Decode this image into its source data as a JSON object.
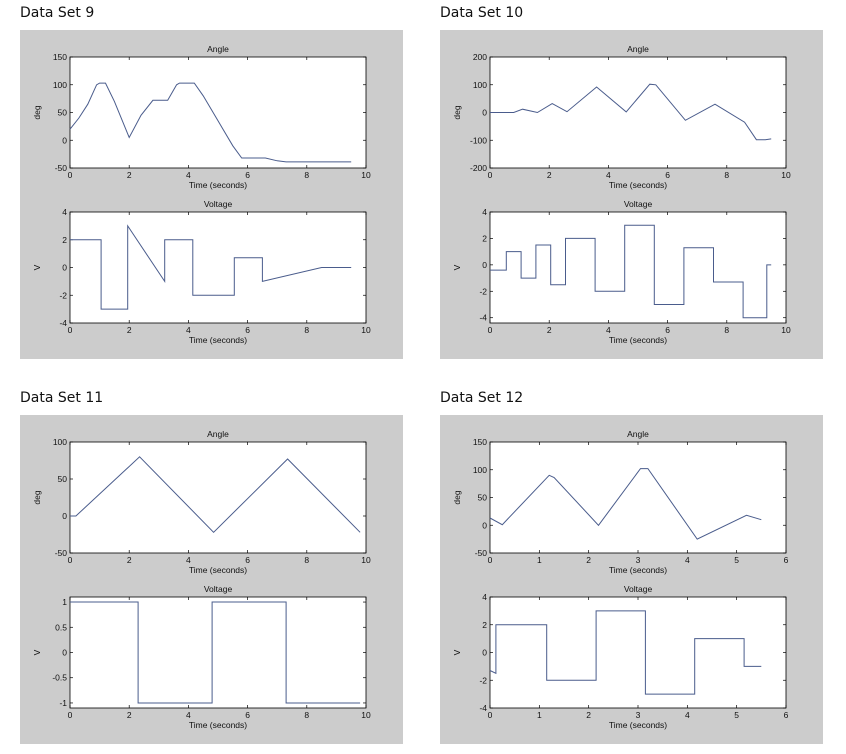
{
  "chart_data": [
    {
      "set_title": "Data Set 9",
      "plots": [
        {
          "type": "line",
          "title": "Angle",
          "xlabel": "Time (seconds)",
          "ylabel": "deg",
          "xlim": [
            0,
            10
          ],
          "ylim": [
            -50,
            150
          ],
          "xticks": [
            0,
            2,
            4,
            6,
            8,
            10
          ],
          "yticks": [
            -50,
            0,
            50,
            100,
            150
          ],
          "x": [
            0,
            0.3,
            0.6,
            0.9,
            1,
            1.2,
            1.5,
            2,
            2.4,
            2.8,
            3.3,
            3.6,
            3.7,
            4.2,
            4.5,
            5,
            5.5,
            5.8,
            6.6,
            7,
            7.3,
            9.5
          ],
          "y": [
            20,
            40,
            65,
            100,
            103,
            103,
            70,
            5,
            45,
            72,
            72,
            100,
            103,
            103,
            80,
            35,
            -10,
            -32,
            -32,
            -37,
            -39,
            -39
          ]
        },
        {
          "type": "line",
          "title": "Voltage",
          "xlabel": "Time (seconds)",
          "ylabel": "V",
          "xlim": [
            0,
            10
          ],
          "ylim": [
            -4,
            4
          ],
          "xticks": [
            0,
            2,
            4,
            6,
            8,
            10
          ],
          "yticks": [
            -4,
            -2,
            0,
            2,
            4
          ],
          "x": [
            0,
            1.05,
            1.05,
            1.95,
            1.95,
            3.2,
            3.2,
            4.15,
            4.15,
            5.55,
            5.55,
            6.5,
            6.5,
            8.5,
            9.5
          ],
          "y": [
            2,
            2,
            -3,
            -3,
            3,
            -1,
            2,
            2,
            -2,
            -2,
            0.7,
            0.7,
            -1,
            0,
            0
          ]
        }
      ]
    },
    {
      "set_title": "Data Set 10",
      "plots": [
        {
          "type": "line",
          "title": "Angle",
          "xlabel": "Time (seconds)",
          "ylabel": "deg",
          "xlim": [
            0,
            10
          ],
          "ylim": [
            -200,
            200
          ],
          "xticks": [
            0,
            2,
            4,
            6,
            8,
            10
          ],
          "yticks": [
            -200,
            -100,
            0,
            100,
            200
          ],
          "x": [
            0,
            0.8,
            1.1,
            1.6,
            2.1,
            2.6,
            3.6,
            4.6,
            5.4,
            5.6,
            6.6,
            7.6,
            8.6,
            9,
            9.3,
            9.5
          ],
          "y": [
            0,
            0,
            12,
            0,
            32,
            3,
            92,
            2,
            102,
            100,
            -28,
            30,
            -35,
            -98,
            -98,
            -95
          ]
        },
        {
          "type": "line",
          "title": "Voltage",
          "xlabel": "Time (seconds)",
          "ylabel": "V",
          "xlim": [
            0,
            10
          ],
          "ylim": [
            -4.4,
            4
          ],
          "xticks": [
            0,
            2,
            4,
            6,
            8,
            10
          ],
          "yticks": [
            -4,
            -2,
            0,
            2,
            4
          ],
          "x": [
            0,
            0.55,
            0.55,
            1.05,
            1.05,
            1.55,
            1.55,
            2.05,
            2.05,
            2.55,
            2.55,
            3.55,
            3.55,
            4.55,
            4.55,
            5.55,
            5.55,
            6.55,
            6.55,
            7.55,
            7.55,
            8.55,
            8.55,
            9.35,
            9.35,
            9.5
          ],
          "y": [
            -0.4,
            -0.4,
            1,
            1,
            -1,
            -1,
            1.5,
            1.5,
            -1.5,
            -1.5,
            2,
            2,
            -2,
            -2,
            3,
            3,
            -3,
            -3,
            1.3,
            1.3,
            -1.3,
            -1.3,
            -4,
            -4,
            0,
            0
          ]
        }
      ]
    },
    {
      "set_title": "Data Set 11",
      "plots": [
        {
          "type": "line",
          "title": "Angle",
          "xlabel": "Time (seconds)",
          "ylabel": "deg",
          "xlim": [
            0,
            10
          ],
          "ylim": [
            -50,
            100
          ],
          "xticks": [
            0,
            2,
            4,
            6,
            8,
            10
          ],
          "yticks": [
            -50,
            0,
            50,
            100
          ],
          "x": [
            0,
            0.2,
            2.35,
            4.85,
            7.35,
            9.8
          ],
          "y": [
            0,
            0,
            80,
            -22,
            77,
            -22
          ]
        },
        {
          "type": "line",
          "title": "Voltage",
          "xlabel": "Time (seconds)",
          "ylabel": "V",
          "xlim": [
            0,
            10
          ],
          "ylim": [
            -1.1,
            1.1
          ],
          "xticks": [
            0,
            2,
            4,
            6,
            8,
            10
          ],
          "yticks": [
            -1,
            -0.5,
            0,
            0.5,
            1
          ],
          "x": [
            0,
            2.3,
            2.3,
            4.8,
            4.8,
            7.3,
            7.3,
            9.8
          ],
          "y": [
            1,
            1,
            -1,
            -1,
            1,
            1,
            -1,
            -1
          ]
        }
      ]
    },
    {
      "set_title": "Data Set 12",
      "plots": [
        {
          "type": "line",
          "title": "Angle",
          "xlabel": "Time (seconds)",
          "ylabel": "deg",
          "xlim": [
            0,
            6
          ],
          "ylim": [
            -50,
            150
          ],
          "xticks": [
            0,
            1,
            2,
            3,
            4,
            5,
            6
          ],
          "yticks": [
            -50,
            0,
            50,
            100,
            150
          ],
          "x": [
            0,
            0.25,
            1.2,
            1.3,
            2.2,
            3.05,
            3.2,
            4.2,
            5.2,
            5.5
          ],
          "y": [
            13,
            1,
            90,
            86,
            0,
            102,
            102,
            -25,
            18,
            10
          ]
        },
        {
          "type": "line",
          "title": "Voltage",
          "xlabel": "Time (seconds)",
          "ylabel": "V",
          "xlim": [
            0,
            6
          ],
          "ylim": [
            -4,
            4
          ],
          "xticks": [
            0,
            1,
            2,
            3,
            4,
            5,
            6
          ],
          "yticks": [
            -4,
            -2,
            0,
            2,
            4
          ],
          "x": [
            0,
            0.12,
            0.12,
            1.15,
            1.15,
            2.15,
            2.15,
            3.15,
            3.15,
            4.15,
            4.15,
            5.15,
            5.15,
            5.5
          ],
          "y": [
            -1.3,
            -1.5,
            2,
            2,
            -2,
            -2,
            3,
            3,
            -3,
            -3,
            1,
            1,
            -1,
            -1
          ]
        }
      ]
    }
  ],
  "colors": {
    "figure_bg": "#cccccc",
    "axes_bg": "#ffffff",
    "line": "#4a5c8c"
  }
}
